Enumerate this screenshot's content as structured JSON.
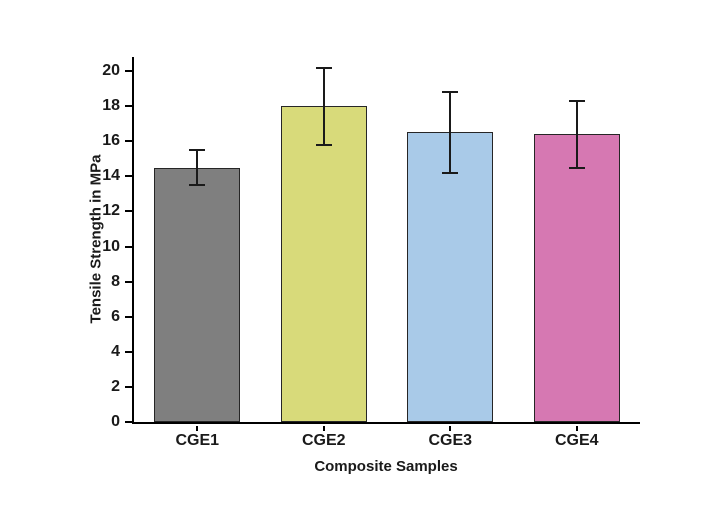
{
  "chart_data": {
    "type": "bar",
    "title": "",
    "xlabel": "Composite Samples",
    "ylabel": "Tensile Strength in MPa",
    "categories": [
      "CGE1",
      "CGE2",
      "CGE3",
      "CGE4"
    ],
    "values": [
      14.5,
      18.0,
      16.5,
      16.4
    ],
    "errors": [
      1.0,
      2.2,
      2.3,
      1.9
    ],
    "colors": [
      "#7f7f7f",
      "#d8da7a",
      "#a9cae8",
      "#d678b2"
    ],
    "ylim": [
      0,
      20.8
    ],
    "yticks": [
      0,
      2,
      4,
      6,
      8,
      10,
      12,
      14,
      16,
      18,
      20
    ],
    "legend": "none",
    "grid": false
  }
}
